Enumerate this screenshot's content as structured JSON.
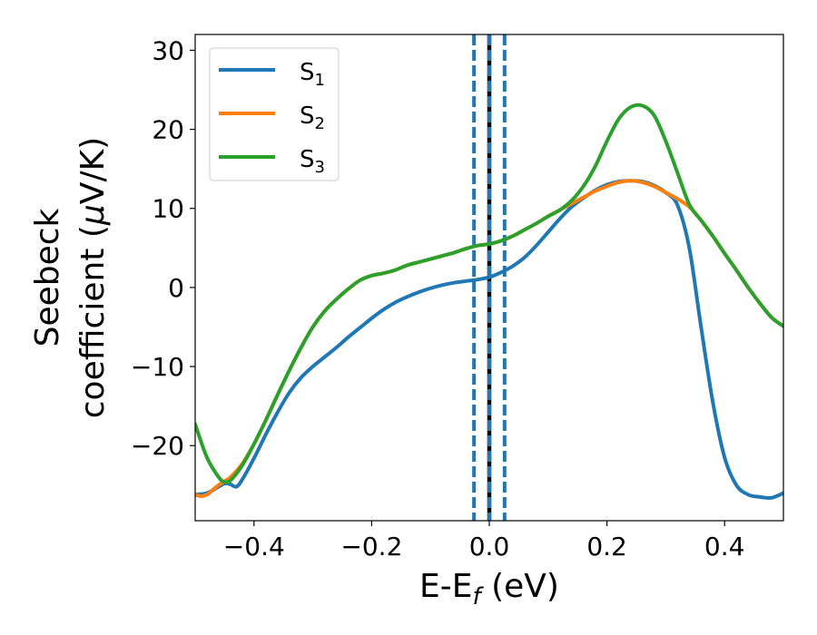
{
  "chart_data": {
    "type": "line",
    "xlabel_main": "E-E",
    "xlabel_sub": "f",
    "xlabel_unit": " (eV)",
    "ylabel_line1": "Seebeck",
    "ylabel_line2_pre": "coefficient  (",
    "ylabel_mu": "μ",
    "ylabel_line2_post": "V/K)",
    "xlim": [
      -0.5,
      0.5
    ],
    "ylim": [
      -29.5,
      32
    ],
    "xticks": [
      -0.4,
      -0.2,
      0.0,
      0.2,
      0.4
    ],
    "xtick_labels": [
      "−0.4",
      "−0.2",
      "0.0",
      "0.2",
      "0.4"
    ],
    "yticks": [
      -20,
      -10,
      0,
      10,
      20,
      30
    ],
    "ytick_labels": [
      "−20",
      "−10",
      "0",
      "10",
      "20",
      "30"
    ],
    "grid": false,
    "legend_position": "top-left",
    "vlines": [
      {
        "x": -0.026,
        "style": "dashed",
        "color": "#1f77b4"
      },
      {
        "x": 0.0,
        "style": "solid",
        "color": "#000000"
      },
      {
        "x": 0.0,
        "style": "dashed",
        "color": "#1f77b4"
      },
      {
        "x": 0.026,
        "style": "dashed",
        "color": "#1f77b4"
      }
    ],
    "series": [
      {
        "name": "S",
        "subscript": "1",
        "color": "#1f77b4",
        "x": [
          -0.5,
          -0.48,
          -0.46,
          -0.45,
          -0.44,
          -0.43,
          -0.42,
          -0.4,
          -0.38,
          -0.36,
          -0.34,
          -0.32,
          -0.3,
          -0.28,
          -0.26,
          -0.24,
          -0.22,
          -0.2,
          -0.18,
          -0.16,
          -0.14,
          -0.12,
          -0.1,
          -0.08,
          -0.06,
          -0.04,
          -0.02,
          0.0,
          0.02,
          0.04,
          0.06,
          0.08,
          0.1,
          0.12,
          0.14,
          0.16,
          0.18,
          0.2,
          0.22,
          0.24,
          0.26,
          0.28,
          0.3,
          0.32,
          0.34,
          0.36,
          0.38,
          0.4,
          0.42,
          0.44,
          0.46,
          0.48,
          0.5
        ],
        "y": [
          -26.2,
          -26.0,
          -25.2,
          -24.8,
          -24.9,
          -25.2,
          -24.3,
          -21.6,
          -18.6,
          -15.8,
          -13.3,
          -11.4,
          -10.0,
          -8.8,
          -7.6,
          -6.3,
          -5.1,
          -3.9,
          -2.8,
          -1.9,
          -1.2,
          -0.6,
          -0.1,
          0.3,
          0.6,
          0.8,
          1.0,
          1.3,
          1.9,
          2.7,
          3.8,
          5.3,
          7.0,
          8.7,
          10.2,
          11.3,
          12.3,
          13.0,
          13.4,
          13.5,
          13.4,
          12.9,
          12.0,
          10.4,
          5.0,
          -5.0,
          -14.5,
          -21.5,
          -25.0,
          -26.2,
          -26.5,
          -26.6,
          -26.0
        ]
      },
      {
        "name": "S",
        "subscript": "2",
        "color": "#ff7f0e",
        "x": [
          -0.5,
          -0.49,
          -0.48,
          -0.47,
          -0.46,
          -0.45,
          -0.44,
          -0.42,
          -0.4,
          -0.38,
          -0.36,
          -0.34,
          -0.32,
          -0.3,
          -0.28,
          -0.26,
          -0.24,
          -0.22,
          -0.2,
          -0.18,
          -0.16,
          -0.14,
          -0.12,
          -0.1,
          -0.08,
          -0.06,
          -0.04,
          -0.02,
          0.0,
          0.02,
          0.04,
          0.06,
          0.08,
          0.1,
          0.12,
          0.14,
          0.16,
          0.18,
          0.2,
          0.22,
          0.24,
          0.26,
          0.28,
          0.3,
          0.32,
          0.34,
          0.36,
          0.38,
          0.4,
          0.42,
          0.44,
          0.46,
          0.48,
          0.5
        ],
        "y": [
          -26.2,
          -26.4,
          -26.2,
          -25.6,
          -25.0,
          -24.5,
          -24.0,
          -22.3,
          -19.8,
          -16.8,
          -13.6,
          -10.5,
          -7.6,
          -5.0,
          -3.0,
          -1.5,
          -0.2,
          0.9,
          1.5,
          1.8,
          2.2,
          2.8,
          3.2,
          3.6,
          4.0,
          4.4,
          4.9,
          5.3,
          5.5,
          5.9,
          6.5,
          7.3,
          8.1,
          9.0,
          9.8,
          10.6,
          11.4,
          12.2,
          12.8,
          13.3,
          13.5,
          13.3,
          12.8,
          12.0,
          11.2,
          10.2,
          8.5,
          6.5,
          4.3,
          2.2,
          0.0,
          -2.0,
          -3.8,
          -4.9
        ]
      },
      {
        "name": "S",
        "subscript": "3",
        "color": "#2ca02c",
        "x": [
          -0.5,
          -0.48,
          -0.46,
          -0.45,
          -0.44,
          -0.42,
          -0.4,
          -0.38,
          -0.36,
          -0.34,
          -0.32,
          -0.3,
          -0.28,
          -0.26,
          -0.24,
          -0.22,
          -0.2,
          -0.18,
          -0.16,
          -0.14,
          -0.12,
          -0.1,
          -0.08,
          -0.06,
          -0.04,
          -0.02,
          0.0,
          0.02,
          0.04,
          0.06,
          0.08,
          0.1,
          0.12,
          0.14,
          0.16,
          0.18,
          0.2,
          0.22,
          0.24,
          0.26,
          0.28,
          0.3,
          0.32,
          0.34,
          0.36,
          0.38,
          0.4,
          0.42,
          0.44,
          0.46,
          0.48,
          0.5
        ],
        "y": [
          -17.3,
          -21.5,
          -24.0,
          -24.6,
          -24.4,
          -22.5,
          -19.8,
          -16.8,
          -13.6,
          -10.5,
          -7.6,
          -5.0,
          -3.0,
          -1.5,
          -0.2,
          0.9,
          1.5,
          1.8,
          2.2,
          2.8,
          3.2,
          3.6,
          4.0,
          4.4,
          4.9,
          5.3,
          5.5,
          5.9,
          6.5,
          7.3,
          8.1,
          9.0,
          9.8,
          11.0,
          12.8,
          15.3,
          18.5,
          21.3,
          22.8,
          23.0,
          21.8,
          18.5,
          14.5,
          10.5,
          8.5,
          6.5,
          4.3,
          2.2,
          0.0,
          -2.0,
          -3.8,
          -4.9
        ]
      }
    ]
  }
}
